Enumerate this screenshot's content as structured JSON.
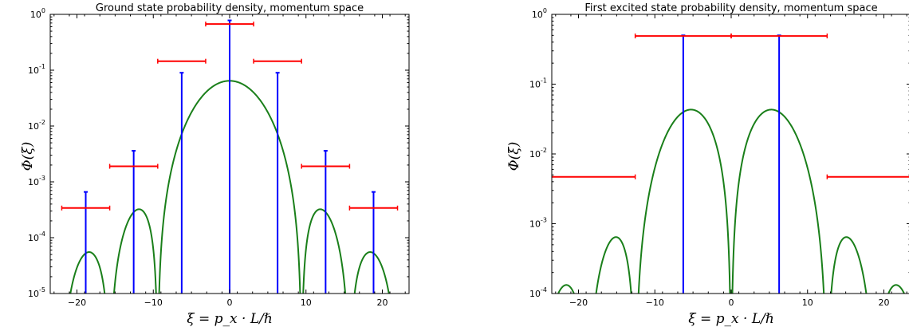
{
  "chart_data": [
    {
      "type": "line",
      "title": "Ground state probability density, momentum space",
      "xlabel": "ξ = p_x · L/ℏ",
      "ylabel": "Φ(ξ)",
      "yscale": "log",
      "xlim": [
        -23.5,
        23.5
      ],
      "ylim": [
        1e-05,
        1
      ],
      "xticks": [
        "−20",
        "−10",
        "0",
        "10",
        "20"
      ],
      "xtick_values": [
        -20,
        -10,
        0,
        10,
        20
      ],
      "yticks": [
        {
          "base": "10",
          "exp": "-5",
          "value": 1e-05
        },
        {
          "base": "10",
          "exp": "-4",
          "value": 0.0001
        },
        {
          "base": "10",
          "exp": "-3",
          "value": 0.001
        },
        {
          "base": "10",
          "exp": "-2",
          "value": 0.01
        },
        {
          "base": "10",
          "exp": "-1",
          "value": 0.1
        },
        {
          "base": "10",
          "exp": "0",
          "value": 1
        }
      ],
      "curve": {
        "color": "#1a7f1a",
        "state": 1
      },
      "stems": {
        "color": "#0000ff",
        "points": [
          {
            "x": -18.85,
            "y": 0.00066
          },
          {
            "x": -12.57,
            "y": 0.0036
          },
          {
            "x": -6.28,
            "y": 0.09
          },
          {
            "x": 0.0,
            "y": 0.78
          },
          {
            "x": 6.28,
            "y": 0.09
          },
          {
            "x": 12.57,
            "y": 0.0036
          },
          {
            "x": 18.85,
            "y": 0.00066
          }
        ]
      },
      "bins": {
        "color": "#ff0000",
        "points": [
          {
            "x0": -21.99,
            "x1": -15.71,
            "y": 0.00034
          },
          {
            "x0": -15.71,
            "x1": -9.42,
            "y": 0.0019
          },
          {
            "x0": -9.42,
            "x1": -3.14,
            "y": 0.145
          },
          {
            "x0": -3.14,
            "x1": 3.14,
            "y": 0.67
          },
          {
            "x0": 3.14,
            "x1": 9.42,
            "y": 0.145
          },
          {
            "x0": 9.42,
            "x1": 15.71,
            "y": 0.0019
          },
          {
            "x0": 15.71,
            "x1": 21.99,
            "y": 0.00034
          }
        ]
      }
    },
    {
      "type": "line",
      "title": "First excited state probability density, momentum space",
      "xlabel": "ξ = p_x · L/ℏ",
      "ylabel": "Φ(ξ)",
      "yscale": "log",
      "xlim": [
        -23.5,
        23.5
      ],
      "ylim": [
        0.0001,
        1
      ],
      "xticks": [
        "−20",
        "−10",
        "0",
        "10",
        "20"
      ],
      "xtick_values": [
        -20,
        -10,
        0,
        10,
        20
      ],
      "yticks": [
        {
          "base": "10",
          "exp": "-4",
          "value": 0.0001
        },
        {
          "base": "10",
          "exp": "-3",
          "value": 0.001
        },
        {
          "base": "10",
          "exp": "-2",
          "value": 0.01
        },
        {
          "base": "10",
          "exp": "-1",
          "value": 0.1
        },
        {
          "base": "10",
          "exp": "0",
          "value": 1
        }
      ],
      "curve": {
        "color": "#1a7f1a",
        "state": 2
      },
      "stems": {
        "color": "#0000ff",
        "points": [
          {
            "x": -6.28,
            "y": 0.5
          },
          {
            "x": 6.28,
            "y": 0.5
          }
        ]
      },
      "bins": {
        "color": "#ff0000",
        "points": [
          {
            "x0": -25.13,
            "x1": -12.57,
            "y": 0.0047
          },
          {
            "x0": -12.57,
            "x1": 0.0,
            "y": 0.49
          },
          {
            "x0": 0.0,
            "x1": 12.57,
            "y": 0.49
          },
          {
            "x0": 12.57,
            "x1": 25.13,
            "y": 0.0047
          }
        ]
      }
    }
  ]
}
